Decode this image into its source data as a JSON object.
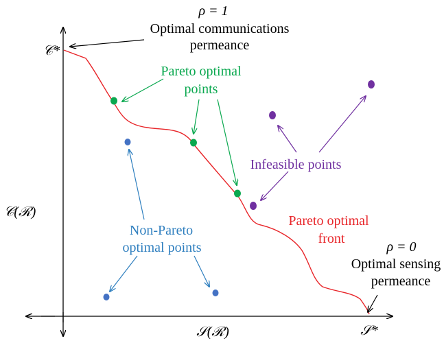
{
  "colors": {
    "axis": "#000000",
    "front": "#e8262a",
    "pareto": "#0aa84f",
    "infeasible": "#7030a0",
    "non_pareto": "#2f7fbf",
    "non_pareto_dot": "#4472c4"
  },
  "labels": {
    "rho_top": "ρ = 1",
    "optimal_comm_line1": "Optimal communications",
    "optimal_comm_line2": "permeance",
    "c_star": "𝒞*",
    "c_axis": "𝒞(ℛ)",
    "pareto_points_line1": "Pareto optimal",
    "pareto_points_line2": "points",
    "infeasible": "Infeasible  points",
    "non_pareto_line1": "Non-Pareto",
    "non_pareto_line2": "optimal points",
    "front_line1": "Pareto optimal",
    "front_line2": "front",
    "rho_bottom": "ρ = 0",
    "optimal_sense_line1": "Optimal sensing",
    "optimal_sense_line2": "permeance",
    "s_axis": "𝒮(ℛ)",
    "s_star": "𝒮*"
  }
}
